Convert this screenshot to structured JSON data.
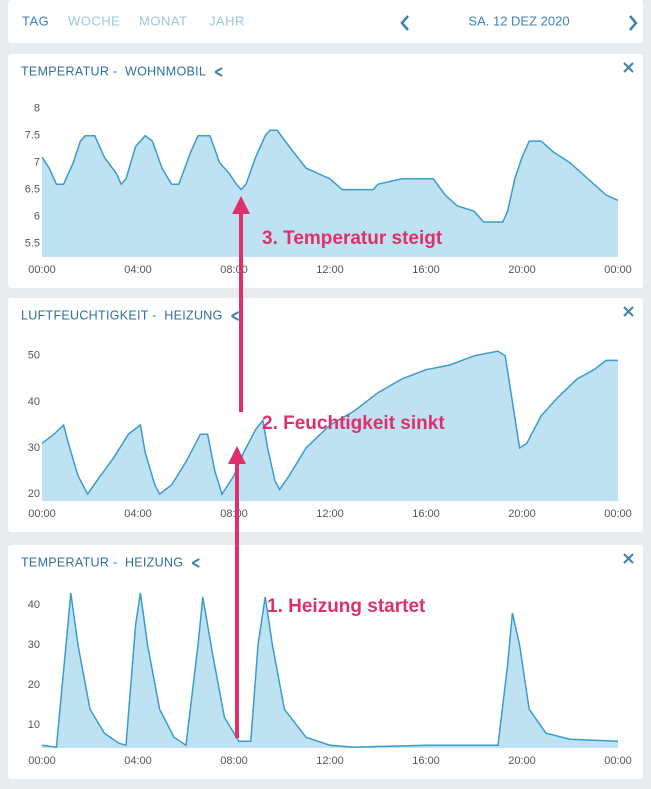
{
  "header": {
    "tabs": [
      "TAG",
      "WOCHE",
      "MONAT",
      "JAHR"
    ],
    "date": "SA. 12 DEZ 2020"
  },
  "annotations": [
    "3. Temperatur steigt",
    "2. Feuchtigkeit sinkt",
    "1. Heizung startet"
  ],
  "chart_data": [
    {
      "type": "area",
      "title": "TEMPERATUR -  WOHNMOBIL",
      "color": "#3b9ccb",
      "fill": "#bfe2f3",
      "x": [
        0,
        0.3,
        0.6,
        0.9,
        1.3,
        1.6,
        1.8,
        2.2,
        2.6,
        3.1,
        3.3,
        3.5,
        3.9,
        4.3,
        4.6,
        5.0,
        5.4,
        5.7,
        6.2,
        6.5,
        7.0,
        7.4,
        7.8,
        8.1,
        8.3,
        8.5,
        8.9,
        9.3,
        9.5,
        9.8,
        10.3,
        11.0,
        11.5,
        12.0,
        12.5,
        13.8,
        14.0,
        15.0,
        16.3,
        16.8,
        17.3,
        18.0,
        18.4,
        19.2,
        19.4,
        19.7,
        20.0,
        20.3,
        20.8,
        21.3,
        22.0,
        22.5,
        23.0,
        23.5,
        24.0
      ],
      "values": [
        7.1,
        6.9,
        6.6,
        6.6,
        7.0,
        7.4,
        7.5,
        7.5,
        7.1,
        6.8,
        6.6,
        6.7,
        7.3,
        7.5,
        7.4,
        6.9,
        6.6,
        6.6,
        7.2,
        7.5,
        7.5,
        7.0,
        6.8,
        6.6,
        6.5,
        6.6,
        7.1,
        7.5,
        7.6,
        7.6,
        7.3,
        6.9,
        6.8,
        6.7,
        6.5,
        6.5,
        6.6,
        6.7,
        6.7,
        6.4,
        6.2,
        6.1,
        5.9,
        5.9,
        6.1,
        6.7,
        7.1,
        7.4,
        7.4,
        7.2,
        7.0,
        6.8,
        6.6,
        6.4,
        6.3
      ],
      "xlim": [
        0,
        24
      ],
      "xticks": [
        {
          "value": 0,
          "label": "00:00"
        },
        {
          "value": 4,
          "label": "04:00"
        },
        {
          "value": 8,
          "label": "08:00"
        },
        {
          "value": 12,
          "label": "12:00"
        },
        {
          "value": 16,
          "label": "16:00"
        },
        {
          "value": 20,
          "label": "20:00"
        },
        {
          "value": 24,
          "label": "00:00"
        }
      ],
      "ylim": [
        5.25,
        8.2
      ],
      "yticks": [
        5.5,
        6,
        6.5,
        7,
        7.5,
        8
      ]
    },
    {
      "type": "area",
      "title": "LUFTFEUCHTIGKEIT -  HEIZUNG",
      "color": "#3b9ccb",
      "fill": "#bfe2f3",
      "x": [
        0,
        0.5,
        0.9,
        1.1,
        1.5,
        1.9,
        2.3,
        3,
        3.6,
        4.1,
        4.3,
        4.7,
        4.9,
        5.4,
        6,
        6.6,
        6.9,
        7.2,
        7.5,
        8,
        8.4,
        8.9,
        9.2,
        9.4,
        9.7,
        9.9,
        10.3,
        11,
        12,
        13,
        14,
        15,
        16,
        17,
        18,
        19.0,
        19.3,
        19.6,
        19.9,
        20.2,
        20.8,
        21.5,
        22.3,
        23,
        23.5,
        24
      ],
      "values": [
        31,
        33,
        35,
        31,
        24,
        20,
        23,
        28,
        33,
        35,
        29,
        22,
        20,
        22,
        27,
        33,
        33,
        25,
        20,
        24,
        29,
        34,
        36,
        30,
        23,
        21,
        24,
        30,
        35,
        38,
        42,
        45,
        47,
        48,
        50,
        51,
        50,
        40,
        30,
        31,
        37,
        41,
        45,
        47,
        49,
        49
      ],
      "xlim": [
        0,
        24
      ],
      "xticks": [
        {
          "value": 0,
          "label": "00:00"
        },
        {
          "value": 4,
          "label": "04:00"
        },
        {
          "value": 8,
          "label": "08:00"
        },
        {
          "value": 12,
          "label": "12:00"
        },
        {
          "value": 16,
          "label": "16:00"
        },
        {
          "value": 20,
          "label": "20:00"
        },
        {
          "value": 24,
          "label": "00:00"
        }
      ],
      "ylim": [
        18.5,
        53
      ],
      "yticks": [
        20,
        30,
        40,
        50
      ]
    },
    {
      "type": "area",
      "title": "TEMPERATUR -  HEIZUNG",
      "color": "#3b9ccb",
      "fill": "#bfe2f3",
      "x": [
        0,
        0.6,
        1.0,
        1.2,
        1.5,
        2.0,
        2.6,
        3.2,
        3.5,
        3.9,
        4.1,
        4.4,
        4.9,
        5.5,
        6,
        6.5,
        6.7,
        7.1,
        7.6,
        8.2,
        8.7,
        9.0,
        9.3,
        9.6,
        10.1,
        11,
        12,
        13,
        16,
        19.0,
        19.4,
        19.6,
        19.9,
        20.3,
        21,
        22,
        24
      ],
      "values": [
        5,
        4.5,
        30,
        43,
        30,
        14,
        8,
        5.5,
        5,
        35,
        43,
        30,
        14,
        7,
        5,
        30,
        42,
        28,
        12,
        6,
        6,
        30,
        42,
        30,
        14,
        7,
        5,
        4.5,
        5,
        5,
        25,
        38,
        30,
        14,
        8,
        6.5,
        6
      ],
      "xlim": [
        0,
        24
      ],
      "xticks": [
        {
          "value": 0,
          "label": "00:00"
        },
        {
          "value": 4,
          "label": "04:00"
        },
        {
          "value": 8,
          "label": "08:00"
        },
        {
          "value": 12,
          "label": "12:00"
        },
        {
          "value": 16,
          "label": "16:00"
        },
        {
          "value": 20,
          "label": "20:00"
        },
        {
          "value": 24,
          "label": "00:00"
        }
      ],
      "ylim": [
        4.3,
        44
      ],
      "yticks": [
        10,
        20,
        30,
        40
      ]
    }
  ]
}
